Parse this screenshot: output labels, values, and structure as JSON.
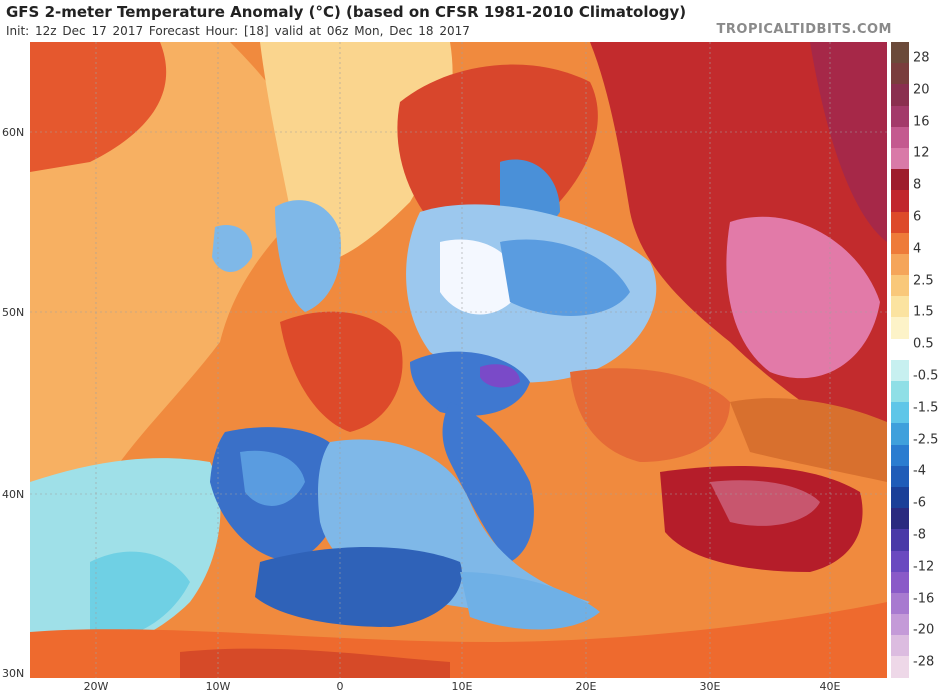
{
  "header": {
    "title": "GFS 2-meter Temperature Anomaly (°C) (based on CFSR 1981-2010 Climatology)",
    "subtitle": "Init: 12z Dec 17 2017   Forecast Hour: [18]   valid at 06z Mon, Dec 18 2017",
    "brand": "TROPICALTIDBITS.COM"
  },
  "axes": {
    "lat_labels": [
      "60N",
      "50N",
      "40N",
      "30N"
    ],
    "lon_labels": [
      "20W",
      "10W",
      "0",
      "10E",
      "20E",
      "30E",
      "40E"
    ]
  },
  "colorbar": {
    "labels": [
      "28",
      "20",
      "16",
      "12",
      "8",
      "6",
      "4",
      "2.5",
      "1.5",
      "0.5",
      "-0.5",
      "-1.5",
      "-2.5",
      "-4",
      "-6",
      "-8",
      "-12",
      "-16",
      "-20",
      "-28"
    ],
    "colors": [
      "#6b4a3a",
      "#7a3d3d",
      "#8a2f4f",
      "#a33a6a",
      "#c45a8f",
      "#d97aa8",
      "#9e1c2c",
      "#c1272d",
      "#dd4a2a",
      "#ee7b3a",
      "#f5a55a",
      "#f9c87a",
      "#fbe3a0",
      "#fdf3c8",
      "#ffffff",
      "#c7f0f0",
      "#8fdfe6",
      "#5fc6e8",
      "#3fa0dc",
      "#2a7cd0",
      "#1f5cb8",
      "#1a3f98",
      "#2a2a80",
      "#4a3aa8",
      "#6a4ac0",
      "#8a5ac8",
      "#a87ad0",
      "#c49ad8",
      "#dcbce0",
      "#eed8e8"
    ]
  }
}
